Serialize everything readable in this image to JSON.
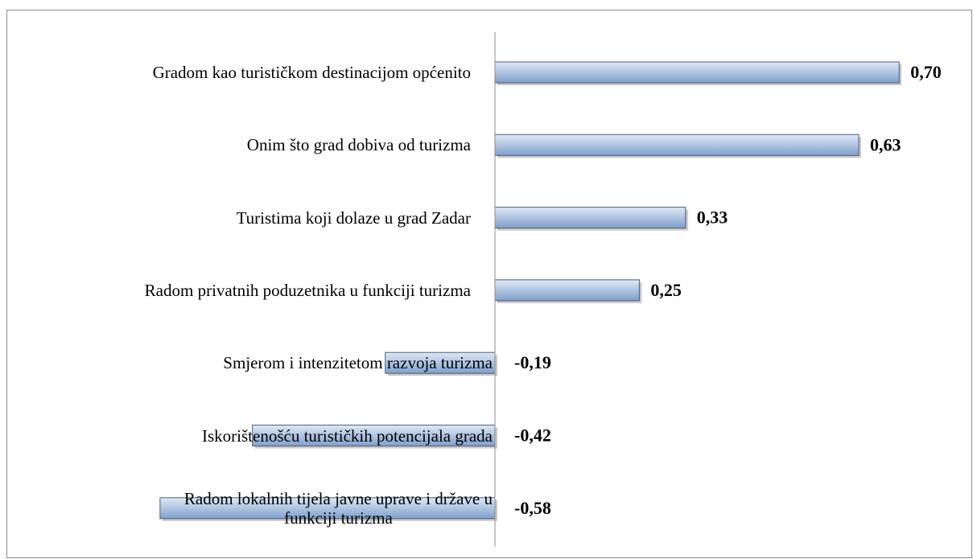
{
  "chart_data": {
    "type": "barh",
    "categories": [
      "Gradom kao turističkom destinacijom općenito",
      "Onim što grad dobiva od turizma",
      "Turistima koji dolaze u grad Zadar",
      "Radom privatnih poduzetnika u funkciji turizma",
      "Smjerom i intenzitetom razvoja turizma",
      "Iskorištenošću turističkih potencijala grada",
      "Radom lokalnih tijela javne uprave i države u\nfunkciji turizma"
    ],
    "values": [
      0.7,
      0.63,
      0.33,
      0.25,
      -0.19,
      -0.42,
      -0.58
    ],
    "value_labels": [
      "0,70",
      "0,63",
      "0,33",
      "0,25",
      "-0,19",
      "-0,42",
      "-0,58"
    ],
    "color": "#a7bfde",
    "xlim": [
      -0.8,
      0.8
    ]
  }
}
